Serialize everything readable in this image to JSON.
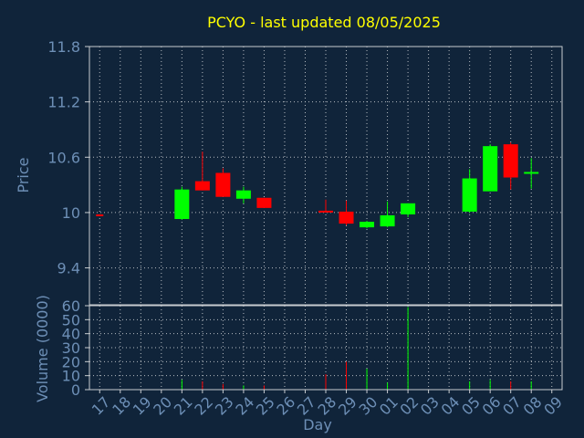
{
  "chart_data": {
    "type": "candlestick",
    "title": "PCYO - last updated 08/05/2025",
    "xlabel": "Day",
    "ylabel_price": "Price",
    "ylabel_volume": "Volume (0000)",
    "price_ylim": [
      9.0,
      11.8
    ],
    "price_ticks": [
      "11.8",
      "11.2",
      "10.6",
      "10",
      "9.4"
    ],
    "volume_ylim": [
      0,
      60
    ],
    "volume_ticks": [
      "60",
      "50",
      "40",
      "30",
      "20",
      "10",
      "0"
    ],
    "grid": true,
    "colors": {
      "background": "#10243a",
      "title": "#ffff00",
      "axis_text": "#6d8fb6",
      "up": "#00ff00",
      "down": "#ff0000",
      "grid": "#c8ccd0"
    },
    "days": [
      "17",
      "18",
      "19",
      "20",
      "21",
      "22",
      "23",
      "24",
      "25",
      "26",
      "27",
      "28",
      "29",
      "30",
      "01",
      "02",
      "03",
      "04",
      "05",
      "06",
      "07",
      "08",
      "09"
    ],
    "candles": [
      {
        "day": "17",
        "open": 9.98,
        "high": 9.98,
        "low": 9.97,
        "close": 9.97,
        "volume": 0
      },
      {
        "day": "21",
        "open": 9.93,
        "high": 10.28,
        "low": 9.92,
        "close": 10.25,
        "volume": 7
      },
      {
        "day": "22",
        "open": 10.34,
        "high": 10.66,
        "low": 10.24,
        "close": 10.24,
        "volume": 6
      },
      {
        "day": "23",
        "open": 10.43,
        "high": 10.48,
        "low": 10.17,
        "close": 10.17,
        "volume": 4
      },
      {
        "day": "24",
        "open": 10.15,
        "high": 10.28,
        "low": 10.1,
        "close": 10.24,
        "volume": 3
      },
      {
        "day": "25",
        "open": 10.16,
        "high": 10.16,
        "low": 10.05,
        "close": 10.05,
        "volume": 3
      },
      {
        "day": "28",
        "open": 10.02,
        "high": 10.14,
        "low": 10.0,
        "close": 10.01,
        "volume": 11
      },
      {
        "day": "29",
        "open": 10.01,
        "high": 10.13,
        "low": 9.86,
        "close": 9.88,
        "volume": 20
      },
      {
        "day": "30",
        "open": 9.84,
        "high": 9.91,
        "low": 9.83,
        "close": 9.9,
        "volume": 15
      },
      {
        "day": "01",
        "open": 9.85,
        "high": 10.12,
        "low": 9.84,
        "close": 9.97,
        "volume": 5
      },
      {
        "day": "02",
        "open": 9.98,
        "high": 10.1,
        "low": 9.95,
        "close": 10.1,
        "volume": 59
      },
      {
        "day": "05",
        "open": 10.01,
        "high": 10.47,
        "low": 10.0,
        "close": 10.37,
        "volume": 6
      },
      {
        "day": "06",
        "open": 10.23,
        "high": 10.74,
        "low": 10.23,
        "close": 10.72,
        "volume": 7
      },
      {
        "day": "07",
        "open": 10.74,
        "high": 10.76,
        "low": 10.25,
        "close": 10.38,
        "volume": 6
      },
      {
        "day": "08",
        "open": 10.42,
        "high": 10.59,
        "low": 10.26,
        "close": 10.44,
        "volume": 6
      }
    ]
  }
}
